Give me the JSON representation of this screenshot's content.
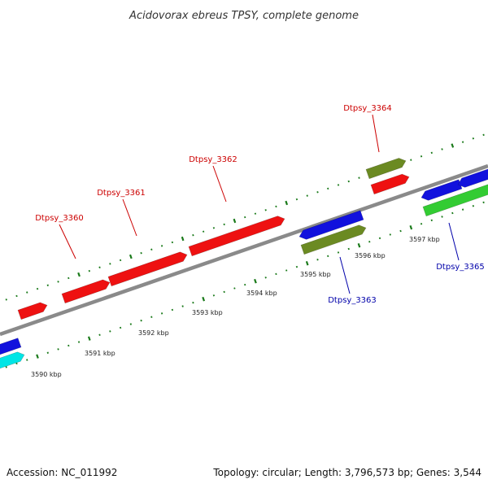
{
  "title": "Acidovorax ebreus TPSY, complete genome",
  "footer": {
    "accession": "Accession: NC_011992",
    "summary": "Topology: circular; Length: 3,796,573 bp; Genes: 3,544"
  },
  "colors": {
    "backbone": "#8a8a8a",
    "ticks": "#1a7a1a",
    "forward_gene": "#ee1111",
    "reverse_gene": "#1111dd",
    "olive_gene": "#6b8a22",
    "cyan_gene": "#00e5e5",
    "green_gene": "#33cc33",
    "forward_label": "#cc0000",
    "reverse_label": "#0000aa"
  },
  "ticks": [
    {
      "label": "3590 kbp"
    },
    {
      "label": "3591 kbp"
    },
    {
      "label": "3592 kbp"
    },
    {
      "label": "3593 kbp"
    },
    {
      "label": "3594 kbp"
    },
    {
      "label": "3595 kbp"
    },
    {
      "label": "3596 kbp"
    },
    {
      "label": "3597 kbp"
    }
  ],
  "gene_labels": [
    {
      "name": "Dtpsy_3360",
      "strand": "forward"
    },
    {
      "name": "Dtpsy_3361",
      "strand": "forward"
    },
    {
      "name": "Dtpsy_3362",
      "strand": "forward"
    },
    {
      "name": "Dtpsy_3364",
      "strand": "forward"
    },
    {
      "name": "Dtpsy_3363",
      "strand": "reverse"
    },
    {
      "name": "Dtpsy_3365",
      "strand": "reverse"
    }
  ]
}
